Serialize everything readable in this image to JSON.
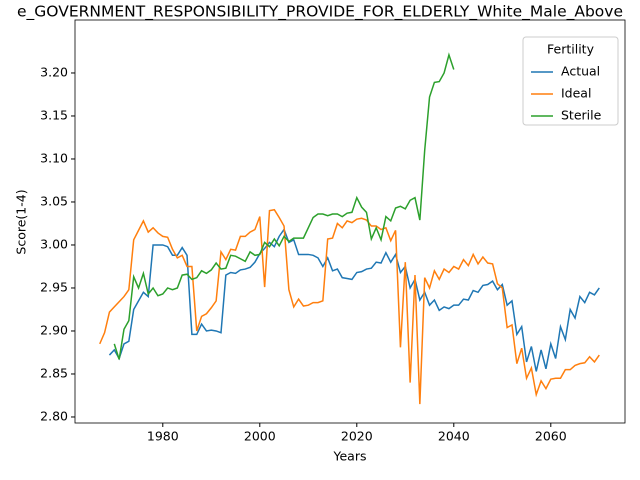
{
  "chart_data": {
    "type": "line",
    "title": "e_GOVERNMENT_RESPONSIBILITY_PROVIDE_FOR_ELDERLY_White_Male_Above",
    "xlabel": "Years",
    "ylabel": "Score(1-4)",
    "legend_title": "Fertility",
    "legend": "upper right",
    "grid": false,
    "xlim": [
      1961.9,
      2075.3
    ],
    "ylim": [
      2.793,
      3.2616
    ],
    "xticks": [
      1980,
      2000,
      2020,
      2040,
      2060
    ],
    "yticks": [
      {
        "value": 2.8,
        "label": "2.80"
      },
      {
        "value": 2.85,
        "label": "2.85"
      },
      {
        "value": 2.9,
        "label": "2.90"
      },
      {
        "value": 2.95,
        "label": "2.95"
      },
      {
        "value": 3.0,
        "label": "3.00"
      },
      {
        "value": 3.05,
        "label": "3.05"
      },
      {
        "value": 3.1,
        "label": "3.10"
      },
      {
        "value": 3.15,
        "label": "3.15"
      },
      {
        "value": 3.2,
        "label": "3.20"
      }
    ],
    "series": [
      {
        "name": "Actual",
        "color": "#1f77b4",
        "x": [
          1969,
          1970,
          1971,
          1972,
          1973,
          1974,
          1975,
          1976,
          1977,
          1978,
          1979,
          1980,
          1981,
          1982,
          1983,
          1984,
          1985,
          1986,
          1987,
          1988,
          1989,
          1990,
          1991,
          1992,
          1993,
          1994,
          1995,
          1996,
          1997,
          1998,
          1999,
          2000,
          2001,
          2002,
          2003,
          2004,
          2005,
          2006,
          2007,
          2008,
          2009,
          2010,
          2011,
          2012,
          2013,
          2014,
          2015,
          2016,
          2017,
          2018,
          2019,
          2020,
          2021,
          2022,
          2023,
          2024,
          2025,
          2026,
          2027,
          2028,
          2029,
          2030,
          2031,
          2032,
          2033,
          2034,
          2035,
          2036,
          2037,
          2038,
          2039,
          2040,
          2041,
          2042,
          2043,
          2044,
          2045,
          2046,
          2047,
          2048,
          2049,
          2050,
          2051,
          2052,
          2053,
          2054,
          2055,
          2056,
          2057,
          2058,
          2059,
          2060,
          2061,
          2062,
          2063,
          2064,
          2065,
          2066,
          2067,
          2068,
          2069,
          2070
        ],
        "values": [
          2.872,
          2.878,
          2.868,
          2.885,
          2.888,
          2.925,
          2.935,
          2.945,
          2.94,
          3.0,
          3.0,
          3.0,
          2.998,
          2.988,
          2.988,
          2.997,
          2.988,
          2.896,
          2.896,
          2.908,
          2.9,
          2.901,
          2.9,
          2.898,
          2.965,
          2.968,
          2.967,
          2.971,
          2.972,
          2.974,
          2.98,
          2.99,
          2.996,
          3.003,
          2.998,
          3.01,
          3.018,
          3.003,
          3.006,
          2.989,
          2.989,
          2.989,
          2.988,
          2.985,
          2.975,
          2.985,
          2.97,
          2.972,
          2.962,
          2.961,
          2.96,
          2.968,
          2.969,
          2.972,
          2.973,
          2.98,
          2.979,
          2.991,
          2.98,
          2.989,
          2.968,
          2.975,
          2.95,
          2.96,
          2.936,
          2.945,
          2.93,
          2.936,
          2.924,
          2.928,
          2.926,
          2.93,
          2.93,
          2.937,
          2.936,
          2.947,
          2.945,
          2.953,
          2.954,
          2.958,
          2.948,
          2.954,
          2.93,
          2.935,
          2.896,
          2.905,
          2.864,
          2.882,
          2.853,
          2.878,
          2.856,
          2.885,
          2.868,
          2.905,
          2.89,
          2.925,
          2.915,
          2.94,
          2.933,
          2.945,
          2.942,
          2.95
        ]
      },
      {
        "name": "Ideal",
        "color": "#ff7f0e",
        "x": [
          1967,
          1968,
          1969,
          1970,
          1971,
          1972,
          1973,
          1974,
          1975,
          1976,
          1977,
          1978,
          1979,
          1980,
          1981,
          1982,
          1983,
          1984,
          1985,
          1986,
          1987,
          1988,
          1989,
          1990,
          1991,
          1992,
          1993,
          1994,
          1995,
          1996,
          1997,
          1998,
          1999,
          2000,
          2001,
          2002,
          2003,
          2004,
          2005,
          2006,
          2007,
          2008,
          2009,
          2010,
          2011,
          2012,
          2013,
          2014,
          2015,
          2016,
          2017,
          2018,
          2019,
          2020,
          2021,
          2022,
          2023,
          2024,
          2025,
          2026,
          2027,
          2028,
          2029,
          2030,
          2031,
          2032,
          2033,
          2034,
          2035,
          2036,
          2037,
          2038,
          2039,
          2040,
          2041,
          2042,
          2043,
          2044,
          2045,
          2046,
          2047,
          2048,
          2049,
          2050,
          2051,
          2052,
          2053,
          2054,
          2055,
          2056,
          2057,
          2058,
          2059,
          2060,
          2061,
          2062,
          2063,
          2064,
          2065,
          2066,
          2067,
          2068,
          2069,
          2070
        ],
        "values": [
          2.885,
          2.898,
          2.922,
          2.928,
          2.934,
          2.94,
          2.948,
          3.006,
          3.017,
          3.028,
          3.015,
          3.02,
          3.014,
          3.01,
          3.009,
          2.995,
          2.985,
          2.988,
          2.975,
          2.975,
          2.9,
          2.917,
          2.92,
          2.927,
          2.935,
          2.992,
          2.983,
          2.995,
          2.994,
          3.01,
          3.01,
          3.015,
          3.018,
          3.033,
          2.951,
          3.04,
          3.041,
          3.032,
          3.022,
          2.948,
          2.928,
          2.937,
          2.929,
          2.93,
          2.933,
          2.933,
          2.935,
          3.007,
          3.008,
          3.025,
          3.02,
          3.028,
          3.026,
          3.03,
          3.031,
          3.029,
          3.022,
          3.022,
          3.018,
          3.02,
          3.005,
          3.017,
          2.881,
          2.98,
          2.84,
          2.965,
          2.815,
          2.962,
          2.95,
          2.97,
          2.96,
          2.972,
          2.968,
          2.975,
          2.972,
          2.983,
          2.976,
          2.989,
          2.978,
          2.986,
          2.979,
          2.978,
          2.955,
          2.95,
          2.904,
          2.907,
          2.862,
          2.88,
          2.845,
          2.857,
          2.826,
          2.842,
          2.833,
          2.844,
          2.845,
          2.845,
          2.855,
          2.855,
          2.86,
          2.862,
          2.863,
          2.87,
          2.864,
          2.872
        ]
      },
      {
        "name": "Sterile",
        "color": "#2ca02c",
        "x": [
          1970,
          1971,
          1972,
          1973,
          1974,
          1975,
          1976,
          1977,
          1978,
          1979,
          1980,
          1981,
          1982,
          1983,
          1984,
          1985,
          1986,
          1987,
          1988,
          1989,
          1990,
          1991,
          1992,
          1993,
          1994,
          1995,
          1996,
          1997,
          1998,
          1999,
          2000,
          2001,
          2002,
          2003,
          2004,
          2005,
          2006,
          2007,
          2008,
          2009,
          2010,
          2011,
          2012,
          2013,
          2014,
          2015,
          2016,
          2017,
          2018,
          2019,
          2020,
          2021,
          2022,
          2023,
          2024,
          2025,
          2026,
          2027,
          2028,
          2029,
          2030,
          2031,
          2032,
          2033,
          2034,
          2035,
          2036,
          2037,
          2038,
          2039,
          2040
        ],
        "values": [
          2.885,
          2.867,
          2.902,
          2.912,
          2.963,
          2.95,
          2.967,
          2.943,
          2.95,
          2.941,
          2.943,
          2.95,
          2.948,
          2.95,
          2.965,
          2.966,
          2.96,
          2.962,
          2.97,
          2.967,
          2.971,
          2.979,
          2.972,
          2.973,
          2.988,
          2.987,
          2.984,
          2.981,
          2.992,
          2.988,
          2.989,
          3.003,
          2.998,
          3.007,
          2.999,
          3.01,
          3.004,
          3.008,
          3.008,
          3.008,
          3.02,
          3.032,
          3.036,
          3.036,
          3.034,
          3.036,
          3.036,
          3.033,
          3.037,
          3.038,
          3.055,
          3.044,
          3.038,
          3.007,
          3.02,
          3.006,
          3.033,
          3.028,
          3.043,
          3.045,
          3.042,
          3.052,
          3.055,
          3.029,
          3.11,
          3.172,
          3.189,
          3.19,
          3.2,
          3.221,
          3.204
        ]
      }
    ]
  }
}
